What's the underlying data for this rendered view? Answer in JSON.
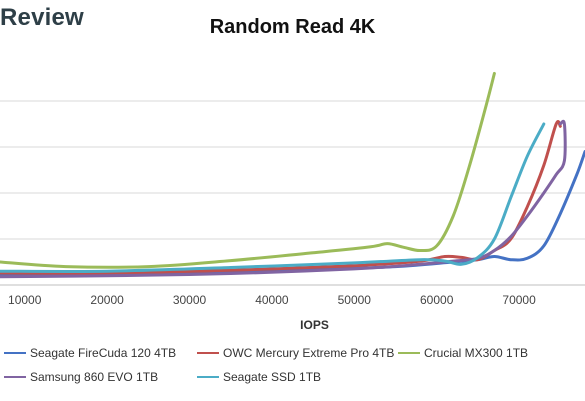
{
  "brand": {
    "text": "Review"
  },
  "chart_data": {
    "type": "line",
    "title": "Random Read 4K",
    "xlabel": "IOPS",
    "ylabel": "",
    "xlim": [
      7000,
      78000
    ],
    "ylim": [
      0,
      5
    ],
    "x_ticks": [
      "10000",
      "20000",
      "30000",
      "40000",
      "50000",
      "60000",
      "70000"
    ],
    "y_grid": [
      1,
      2,
      3,
      4
    ],
    "grid": "horizontal",
    "legend_position": "bottom",
    "series": [
      {
        "name": "Seagate FireCuda 120 4TB",
        "color": "#4472c4",
        "points": [
          [
            7000,
            0.22
          ],
          [
            15000,
            0.22
          ],
          [
            30000,
            0.26
          ],
          [
            45000,
            0.33
          ],
          [
            55000,
            0.4
          ],
          [
            62000,
            0.5
          ],
          [
            65000,
            0.55
          ],
          [
            67000,
            0.62
          ],
          [
            69000,
            0.55
          ],
          [
            71000,
            0.58
          ],
          [
            73000,
            0.85
          ],
          [
            75000,
            1.55
          ],
          [
            77000,
            2.4
          ],
          [
            78000,
            2.9
          ]
        ]
      },
      {
        "name": "OWC Mercury Extreme Pro 4TB",
        "color": "#c0504d",
        "points": [
          [
            7000,
            0.26
          ],
          [
            20000,
            0.26
          ],
          [
            35000,
            0.32
          ],
          [
            50000,
            0.42
          ],
          [
            58000,
            0.52
          ],
          [
            61000,
            0.62
          ],
          [
            63000,
            0.6
          ],
          [
            65000,
            0.55
          ],
          [
            67000,
            0.75
          ],
          [
            69000,
            1.0
          ],
          [
            71000,
            1.7
          ],
          [
            73000,
            2.6
          ],
          [
            74500,
            3.5
          ],
          [
            75000,
            3.45
          ]
        ]
      },
      {
        "name": "Crucial MX300 1TB",
        "color": "#9bbb59",
        "points": [
          [
            7000,
            0.5
          ],
          [
            15000,
            0.4
          ],
          [
            25000,
            0.4
          ],
          [
            35000,
            0.53
          ],
          [
            45000,
            0.7
          ],
          [
            52000,
            0.83
          ],
          [
            54000,
            0.9
          ],
          [
            56000,
            0.82
          ],
          [
            58000,
            0.75
          ],
          [
            60000,
            0.85
          ],
          [
            62000,
            1.5
          ],
          [
            64000,
            2.6
          ],
          [
            66000,
            3.9
          ],
          [
            67000,
            4.6
          ]
        ]
      },
      {
        "name": "Samsung 860 EVO 1TB",
        "color": "#8064a2",
        "points": [
          [
            7000,
            0.18
          ],
          [
            20000,
            0.2
          ],
          [
            35000,
            0.25
          ],
          [
            50000,
            0.35
          ],
          [
            58000,
            0.45
          ],
          [
            62000,
            0.52
          ],
          [
            65000,
            0.58
          ],
          [
            67000,
            0.75
          ],
          [
            69000,
            1.05
          ],
          [
            71000,
            1.5
          ],
          [
            73000,
            2.0
          ],
          [
            74500,
            2.4
          ],
          [
            75500,
            2.7
          ],
          [
            75500,
            3.5
          ],
          [
            75000,
            3.5
          ]
        ]
      },
      {
        "name": "Seagate SSD 1TB",
        "color": "#4bacc6",
        "points": [
          [
            7000,
            0.3
          ],
          [
            20000,
            0.3
          ],
          [
            35000,
            0.38
          ],
          [
            50000,
            0.48
          ],
          [
            58000,
            0.55
          ],
          [
            61000,
            0.52
          ],
          [
            63000,
            0.45
          ],
          [
            65000,
            0.6
          ],
          [
            67000,
            1.0
          ],
          [
            69000,
            1.9
          ],
          [
            71000,
            2.8
          ],
          [
            73000,
            3.5
          ]
        ]
      }
    ]
  }
}
